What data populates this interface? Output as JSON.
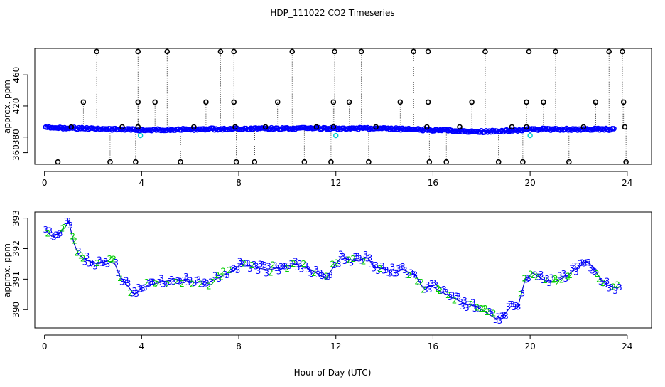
{
  "figure": {
    "title": "HDP_111022  CO2 Timeseries",
    "xlabel": "Hour of Day (UTC)"
  },
  "colors": {
    "outlier": "#000000",
    "primary_points": "#0000ff",
    "secondary_points": "#00cccc",
    "digit_3": "#0000ff",
    "digit_2": "#00cc00",
    "line": "#0000cc"
  },
  "chart_data": [
    {
      "type": "scatter",
      "ylabel": "approx. ppm",
      "xlim": [
        -0.4,
        25.0
      ],
      "ylim": [
        345,
        494
      ],
      "xticks": [
        0,
        4,
        8,
        12,
        16,
        20,
        24
      ],
      "yticks": [
        360,
        380,
        420,
        460
      ],
      "grid": false,
      "baseline": [
        [
          0.05,
          392
        ],
        [
          2,
          391
        ],
        [
          3,
          390
        ],
        [
          4,
          389
        ],
        [
          6,
          390
        ],
        [
          8,
          390.5
        ],
        [
          10,
          391
        ],
        [
          12,
          391
        ],
        [
          14,
          391
        ],
        [
          15,
          390
        ],
        [
          16,
          389
        ],
        [
          18,
          387
        ],
        [
          19,
          388
        ],
        [
          20,
          390
        ],
        [
          22,
          390
        ],
        [
          23.5,
          390
        ]
      ],
      "high_outliers": [
        2.15,
        3.85,
        5.05,
        7.25,
        7.8,
        10.2,
        11.95,
        13.05,
        15.2,
        15.8,
        18.15,
        19.95,
        21.05,
        23.25,
        23.8
      ],
      "upper_outliers": [
        1.6,
        3.85,
        4.55,
        6.65,
        7.8,
        9.6,
        11.9,
        12.55,
        14.65,
        15.8,
        17.6,
        19.85,
        20.55,
        22.7,
        23.85
      ],
      "mid_outliers": [
        1.1,
        3.2,
        3.85,
        6.15,
        7.85,
        9.1,
        11.2,
        11.9,
        13.65,
        15.75,
        17.1,
        19.25,
        19.85,
        22.2,
        23.9
      ],
      "low_outliers": [
        0.55,
        2.7,
        3.75,
        5.6,
        7.9,
        8.65,
        10.7,
        11.8,
        13.35,
        15.85,
        16.55,
        18.7,
        19.7,
        21.6,
        23.95
      ],
      "secondary_points": [
        [
          3.95,
          382
        ],
        [
          12.0,
          382
        ],
        [
          20.0,
          382
        ]
      ]
    },
    {
      "type": "line",
      "ylabel": "approx. ppm",
      "xlim": [
        -0.4,
        25.0
      ],
      "ylim": [
        389.4,
        393.2
      ],
      "xticks": [
        0,
        4,
        8,
        12,
        16,
        20,
        24
      ],
      "yticks": [
        390,
        391,
        392,
        393
      ],
      "grid": false,
      "markers": [
        "3",
        "2"
      ],
      "series": [
        [
          0.05,
          392.6
        ],
        [
          0.3,
          392.4
        ],
        [
          0.6,
          392.5
        ],
        [
          0.85,
          392.7
        ],
        [
          1.0,
          392.9
        ],
        [
          1.2,
          392.2
        ],
        [
          1.4,
          391.8
        ],
        [
          1.8,
          391.6
        ],
        [
          2.2,
          391.5
        ],
        [
          2.6,
          391.6
        ],
        [
          2.9,
          391.5
        ],
        [
          3.1,
          391.1
        ],
        [
          3.4,
          390.8
        ],
        [
          3.7,
          390.5
        ],
        [
          4.0,
          390.7
        ],
        [
          4.3,
          390.8
        ],
        [
          4.8,
          390.9
        ],
        [
          5.4,
          391.0
        ],
        [
          6.2,
          390.9
        ],
        [
          6.8,
          390.9
        ],
        [
          7.3,
          391.1
        ],
        [
          7.8,
          391.3
        ],
        [
          8.1,
          391.5
        ],
        [
          8.6,
          391.4
        ],
        [
          9.2,
          391.3
        ],
        [
          9.8,
          391.4
        ],
        [
          10.4,
          391.5
        ],
        [
          11.0,
          391.3
        ],
        [
          11.6,
          391.0
        ],
        [
          11.9,
          391.4
        ],
        [
          12.2,
          391.7
        ],
        [
          12.8,
          391.6
        ],
        [
          13.3,
          391.7
        ],
        [
          13.6,
          391.4
        ],
        [
          14.2,
          391.3
        ],
        [
          14.8,
          391.3
        ],
        [
          15.3,
          391.1
        ],
        [
          15.6,
          390.7
        ],
        [
          15.9,
          390.8
        ],
        [
          16.3,
          390.6
        ],
        [
          16.8,
          390.4
        ],
        [
          17.3,
          390.2
        ],
        [
          17.8,
          390.1
        ],
        [
          18.2,
          389.9
        ],
        [
          18.6,
          389.7
        ],
        [
          18.9,
          389.8
        ],
        [
          19.2,
          390.1
        ],
        [
          19.5,
          390.1
        ],
        [
          19.8,
          391.0
        ],
        [
          20.1,
          391.2
        ],
        [
          20.5,
          391.0
        ],
        [
          21.0,
          390.9
        ],
        [
          21.5,
          391.1
        ],
        [
          22.0,
          391.4
        ],
        [
          22.3,
          391.6
        ],
        [
          22.6,
          391.4
        ],
        [
          22.9,
          391.0
        ],
        [
          23.2,
          390.8
        ],
        [
          23.6,
          390.7
        ],
        [
          23.75,
          390.8
        ]
      ]
    }
  ]
}
